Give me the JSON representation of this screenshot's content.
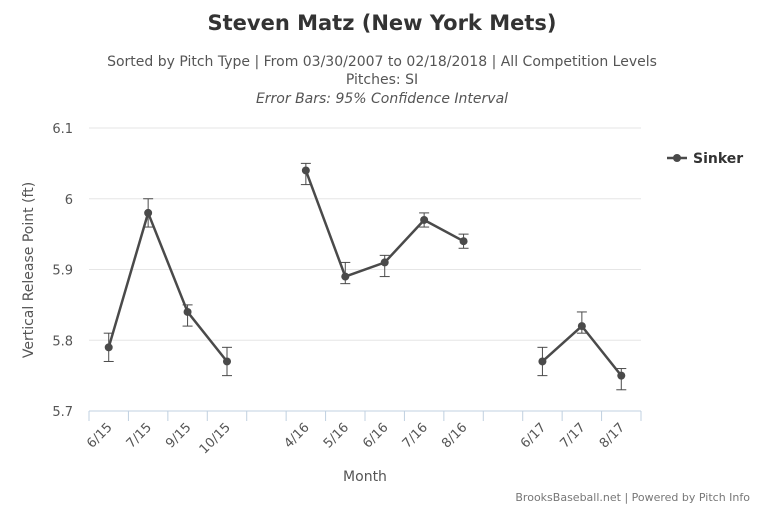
{
  "chart_data": {
    "type": "line",
    "title": "Steven Matz (New York Mets)",
    "subtitle_line1": "Sorted by Pitch Type | From 03/30/2007 to 02/18/2018 | All Competition Levels",
    "subtitle_line2": "Pitches: SI",
    "subtitle_line3": "Error Bars: 95% Confidence Interval",
    "xlabel": "Month",
    "ylabel": "Vertical Release Point (ft)",
    "ylim": [
      5.7,
      6.1
    ],
    "yticks": [
      5.7,
      5.8,
      5.9,
      6.0,
      6.1
    ],
    "ytick_labels": [
      "5.7",
      "5.8",
      "5.9",
      "6",
      "6.1"
    ],
    "categories": [
      "6/15",
      "7/15",
      "9/15",
      "10/15",
      "",
      "4/16",
      "5/16",
      "6/16",
      "7/16",
      "8/16",
      "",
      "6/17",
      "7/17",
      "8/17"
    ],
    "legend_position": "top-right",
    "series": [
      {
        "name": "Sinker",
        "color": "#4a4a4a",
        "values": [
          5.79,
          5.98,
          5.84,
          5.77,
          null,
          6.04,
          5.89,
          5.91,
          5.97,
          5.94,
          null,
          5.77,
          5.82,
          5.75
        ],
        "error_low": [
          5.77,
          5.96,
          5.82,
          5.75,
          null,
          6.02,
          5.88,
          5.89,
          5.96,
          5.93,
          null,
          5.75,
          5.81,
          5.73
        ],
        "error_high": [
          5.81,
          6.0,
          5.85,
          5.79,
          null,
          6.05,
          5.91,
          5.92,
          5.98,
          5.95,
          null,
          5.79,
          5.84,
          5.76
        ]
      }
    ],
    "credits": "BrooksBaseball.net | Powered by Pitch Info"
  },
  "colors": {
    "axis": "#c0d0e0",
    "grid": "#e6e6e6",
    "text": "#333333",
    "subtitle": "#555555",
    "series": "#4a4a4a"
  }
}
